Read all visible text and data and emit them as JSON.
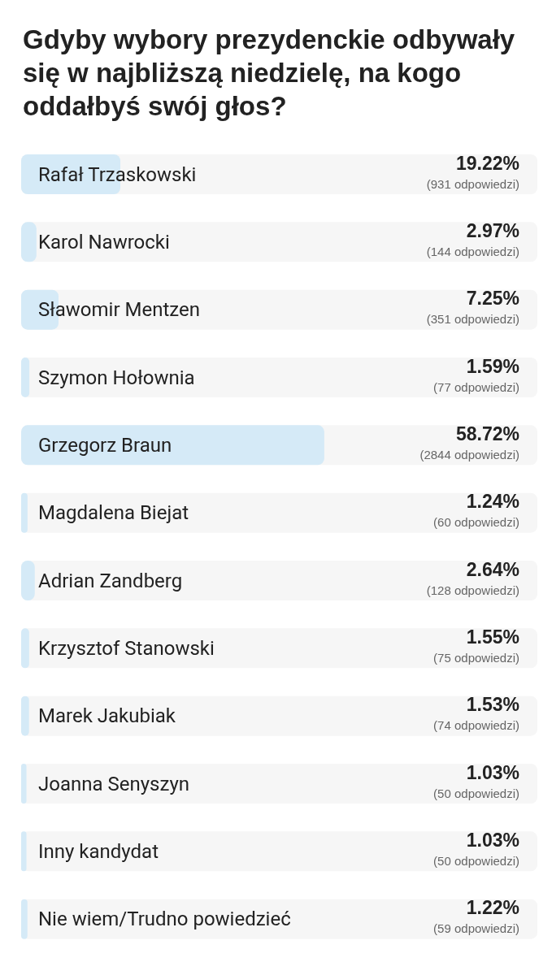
{
  "chart_data": {
    "type": "bar",
    "orientation": "horizontal",
    "title": "Gdyby wybory prezydenckie odbywały się w najbliższą niedzielę, na kogo oddałbyś swój głos?",
    "categories": [
      "Rafał Trzaskowski",
      "Karol Nawrocki",
      "Sławomir Mentzen",
      "Szymon Hołownia",
      "Grzegorz Braun",
      "Magdalena Biejat",
      "Adrian Zandberg",
      "Krzysztof Stanowski",
      "Marek Jakubiak",
      "Joanna Senyszyn",
      "Inny kandydat",
      "Nie wiem/Trudno powiedzieć"
    ],
    "values": [
      19.22,
      2.97,
      7.25,
      1.59,
      58.72,
      1.24,
      2.64,
      1.55,
      1.53,
      1.03,
      1.03,
      1.22
    ],
    "value_labels": [
      "19.22%",
      "2.97%",
      "7.25%",
      "1.59%",
      "58.72%",
      "1.24%",
      "2.64%",
      "1.55%",
      "1.53%",
      "1.03%",
      "1.03%",
      "1.22%"
    ],
    "color": "#d5eaf7",
    "xlim": [
      0,
      100
    ],
    "tick_labels": false,
    "grid": false,
    "legend": false,
    "annotations": [
      "(931 odpowiedzi)",
      "(144 odpowiedzi)",
      "(351 odpowiedzi)",
      "(77 odpowiedzi)",
      "(2844 odpowiedzi)",
      "(60 odpowiedzi)",
      "(128 odpowiedzi)",
      "(75 odpowiedzi)",
      "(74 odpowiedzi)",
      "(50 odpowiedzi)",
      "(50 odpowiedzi)",
      "(59 odpowiedzi)"
    ]
  }
}
